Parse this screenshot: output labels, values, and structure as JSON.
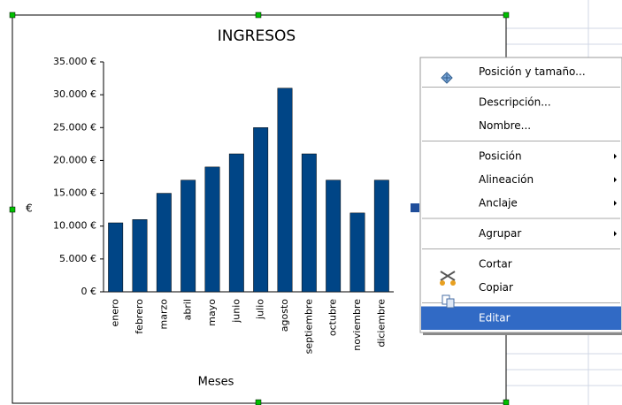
{
  "chart_data": {
    "type": "bar",
    "title": "INGRESOS",
    "x_label": "Meses",
    "y_label": "€",
    "categories": [
      "enero",
      "febrero",
      "marzo",
      "abril",
      "mayo",
      "junio",
      "julio",
      "agosto",
      "septiembre",
      "octubre",
      "noviembre",
      "diciembre"
    ],
    "values": [
      10500,
      11000,
      15000,
      17000,
      19000,
      21000,
      25000,
      31000,
      21000,
      17000,
      12000,
      17000
    ],
    "color": "#004586",
    "ylim": [
      0,
      35000
    ],
    "yticks": [
      {
        "value": 0,
        "label": "0 €"
      },
      {
        "value": 5000,
        "label": "5.000 €"
      },
      {
        "value": 10000,
        "label": "10.000 €"
      },
      {
        "value": 15000,
        "label": "15.000 €"
      },
      {
        "value": 20000,
        "label": "20.000 €"
      },
      {
        "value": 25000,
        "label": "25.000 €"
      },
      {
        "value": 30000,
        "label": "30.000 €"
      },
      {
        "value": 35000,
        "label": "35.000 €"
      }
    ],
    "grid": false
  },
  "menu": {
    "groups": [
      [
        {
          "text": "Posición y tamaño..."
        }
      ],
      [
        {
          "text": "Descripción..."
        },
        {
          "text": "Nombre..."
        }
      ],
      [
        {
          "text": "Posición",
          "submenu": true
        },
        {
          "text": "Alineación",
          "submenu": true
        },
        {
          "text": "Anclaje",
          "submenu": true
        }
      ],
      [
        {
          "text": "Agrupar",
          "submenu": true
        }
      ],
      [
        {
          "text": "Cortar"
        },
        {
          "text": "Copiar"
        }
      ],
      [
        {
          "text": "Editar",
          "highlighted": true
        }
      ]
    ]
  }
}
